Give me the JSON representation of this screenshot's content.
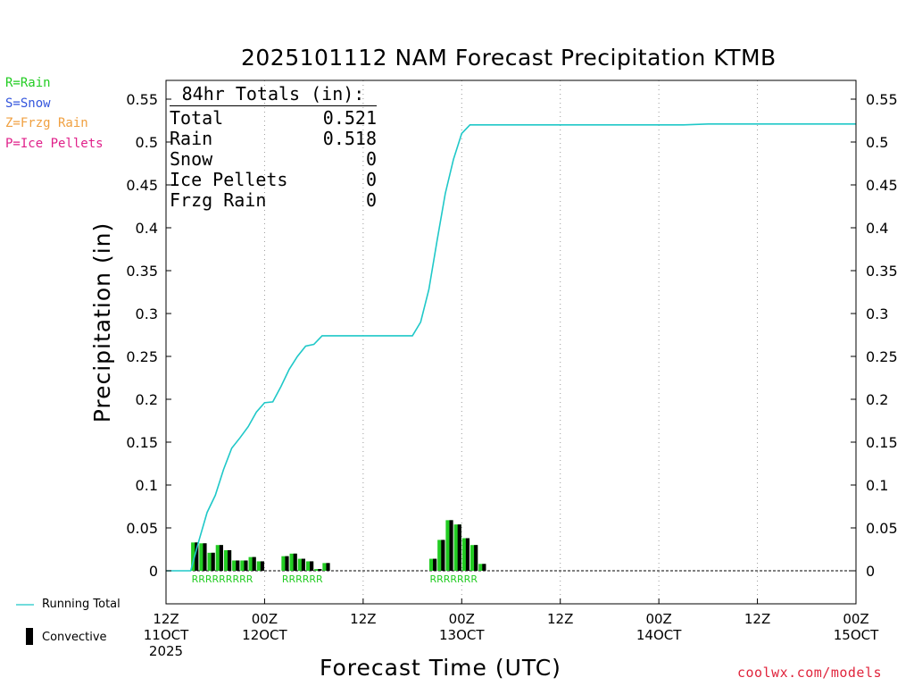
{
  "title": "2025101112 NAM Forecast Precipitation KTMB",
  "precip_legend": [
    {
      "text": "R=Rain",
      "color": "#22cc22"
    },
    {
      "text": "S=Snow",
      "color": "#3355dd"
    },
    {
      "text": "Z=Frzg Rain",
      "color": "#f0a040"
    },
    {
      "text": "P=Ice Pellets",
      "color": "#e0208a"
    }
  ],
  "totals": {
    "header": "84hr Totals (in):",
    "rows": [
      {
        "label": "Total",
        "value": "0.521"
      },
      {
        "label": "Rain",
        "value": "0.518"
      },
      {
        "label": "Snow",
        "value": "0"
      },
      {
        "label": "Ice Pellets",
        "value": "0"
      },
      {
        "label": "Frzg Rain",
        "value": "0"
      }
    ]
  },
  "bottom_legend": {
    "running_total": "Running Total",
    "convective": "Convective"
  },
  "site": "coolwx.com/models",
  "colors": {
    "running_total": "#1fc8c8",
    "rain_bar": "#22cc22",
    "convective": "#000000",
    "rain_label": "#22cc22"
  },
  "chart_data": {
    "type": "bar",
    "title": "2025101112 NAM Forecast Precipitation KTMB",
    "xlabel": "Forecast Time (UTC)",
    "ylabel": "Precipitation (in)",
    "ylim": [
      -0.04,
      0.57
    ],
    "xlim_hours": [
      0,
      84
    ],
    "yticks": [
      "0",
      "0.05",
      "0.1",
      "0.15",
      "0.2",
      "0.25",
      "0.3",
      "0.35",
      "0.4",
      "0.45",
      "0.5",
      "0.55"
    ],
    "x_tick_labels": [
      {
        "hour": 0,
        "lines": [
          "12Z",
          "11OCT",
          "2025"
        ]
      },
      {
        "hour": 12,
        "lines": [
          "00Z",
          "12OCT"
        ]
      },
      {
        "hour": 24,
        "lines": [
          "12Z"
        ]
      },
      {
        "hour": 36,
        "lines": [
          "00Z",
          "13OCT"
        ]
      },
      {
        "hour": 48,
        "lines": [
          "12Z"
        ]
      },
      {
        "hour": 60,
        "lines": [
          "00Z",
          "14OCT"
        ]
      },
      {
        "hour": 72,
        "lines": [
          "12Z"
        ]
      },
      {
        "hour": 84,
        "lines": [
          "00Z",
          "15OCT"
        ]
      }
    ],
    "grid": "vertical dotted",
    "series": [
      {
        "name": "Running Total",
        "type": "line",
        "x": [
          0,
          3,
          4,
          5,
          6,
          7,
          8,
          9,
          10,
          11,
          12,
          13,
          14,
          15,
          16,
          17,
          18,
          19,
          20,
          20.5,
          21,
          21.5,
          22,
          22.5,
          23,
          24,
          25,
          26,
          27,
          28,
          29,
          30,
          31,
          32,
          33,
          34,
          35,
          36,
          37,
          38,
          39,
          40,
          48,
          60,
          63,
          66,
          70,
          84
        ],
        "y": [
          0,
          0,
          0.035,
          0.068,
          0.088,
          0.118,
          0.143,
          0.155,
          0.168,
          0.185,
          0.196,
          0.197,
          0.215,
          0.235,
          0.25,
          0.262,
          0.264,
          0.274,
          0.274,
          0.274,
          0.274,
          0.274,
          0.274,
          0.274,
          0.274,
          0.274,
          0.274,
          0.274,
          0.274,
          0.274,
          0.274,
          0.274,
          0.29,
          0.328,
          0.385,
          0.44,
          0.48,
          0.51,
          0.52,
          0.52,
          0.52,
          0.52,
          0.52,
          0.52,
          0.52,
          0.521,
          0.521,
          0.521
        ]
      },
      {
        "name": "Convective",
        "type": "bar",
        "x": [
          4,
          5,
          6,
          7,
          8,
          9,
          10,
          11,
          12,
          13,
          15,
          16,
          17,
          18,
          19,
          20,
          33,
          34,
          35,
          36,
          37,
          38,
          39
        ],
        "y": [
          0.033,
          0.032,
          0.021,
          0.03,
          0.024,
          0.012,
          0.012,
          0.016,
          0.011,
          0.0,
          0.017,
          0.02,
          0.014,
          0.011,
          0.002,
          0.009,
          0.014,
          0.036,
          0.059,
          0.054,
          0.038,
          0.03,
          0.008
        ]
      }
    ],
    "precip_type_labels": [
      {
        "hour_start": 4,
        "text": "RRRRRRRRR"
      },
      {
        "hour_start": 15,
        "text": "RRRRRR"
      },
      {
        "hour_start": 33,
        "text": "RRRRRRR"
      }
    ]
  }
}
